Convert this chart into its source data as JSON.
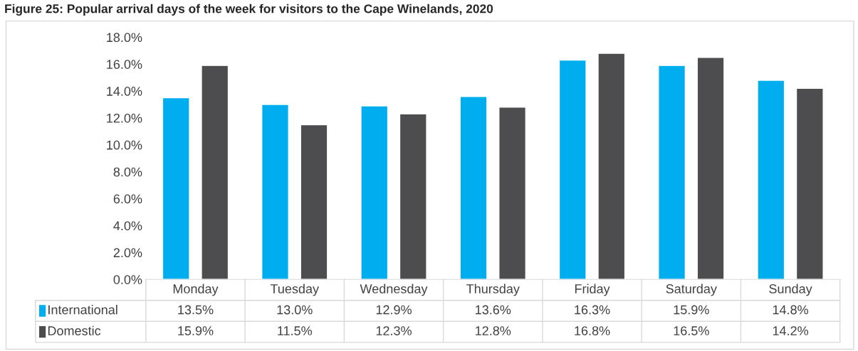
{
  "chart_data": {
    "type": "bar",
    "title": "Figure 25: Popular arrival days of the week for visitors to the Cape Winelands, 2020",
    "categories": [
      "Monday",
      "Tuesday",
      "Wednesday",
      "Thursday",
      "Friday",
      "Saturday",
      "Sunday"
    ],
    "series": [
      {
        "name": "International",
        "color": "#00aeef",
        "values": [
          13.5,
          13.0,
          12.9,
          13.6,
          16.3,
          15.9,
          14.8
        ],
        "value_labels": [
          "13.5%",
          "13.0%",
          "12.9%",
          "13.6%",
          "16.3%",
          "15.9%",
          "14.8%"
        ]
      },
      {
        "name": "Domestic",
        "color": "#4d4d4f",
        "values": [
          15.9,
          11.5,
          12.3,
          12.8,
          16.8,
          16.5,
          14.2
        ],
        "value_labels": [
          "15.9%",
          "11.5%",
          "12.3%",
          "12.8%",
          "16.8%",
          "16.5%",
          "14.2%"
        ]
      }
    ],
    "ylim": [
      0,
      18
    ],
    "yticks": [
      {
        "value": 0,
        "label": "0.0%"
      },
      {
        "value": 2,
        "label": "2.0%"
      },
      {
        "value": 4,
        "label": "4.0%"
      },
      {
        "value": 6,
        "label": "6.0%"
      },
      {
        "value": 8,
        "label": "8.0%"
      },
      {
        "value": 10,
        "label": "10.0%"
      },
      {
        "value": 12,
        "label": "12.0%"
      },
      {
        "value": 14,
        "label": "14.0%"
      },
      {
        "value": 16,
        "label": "16.0%"
      },
      {
        "value": 18,
        "label": "18.0%"
      }
    ],
    "grid": false,
    "legend": "bottom"
  }
}
